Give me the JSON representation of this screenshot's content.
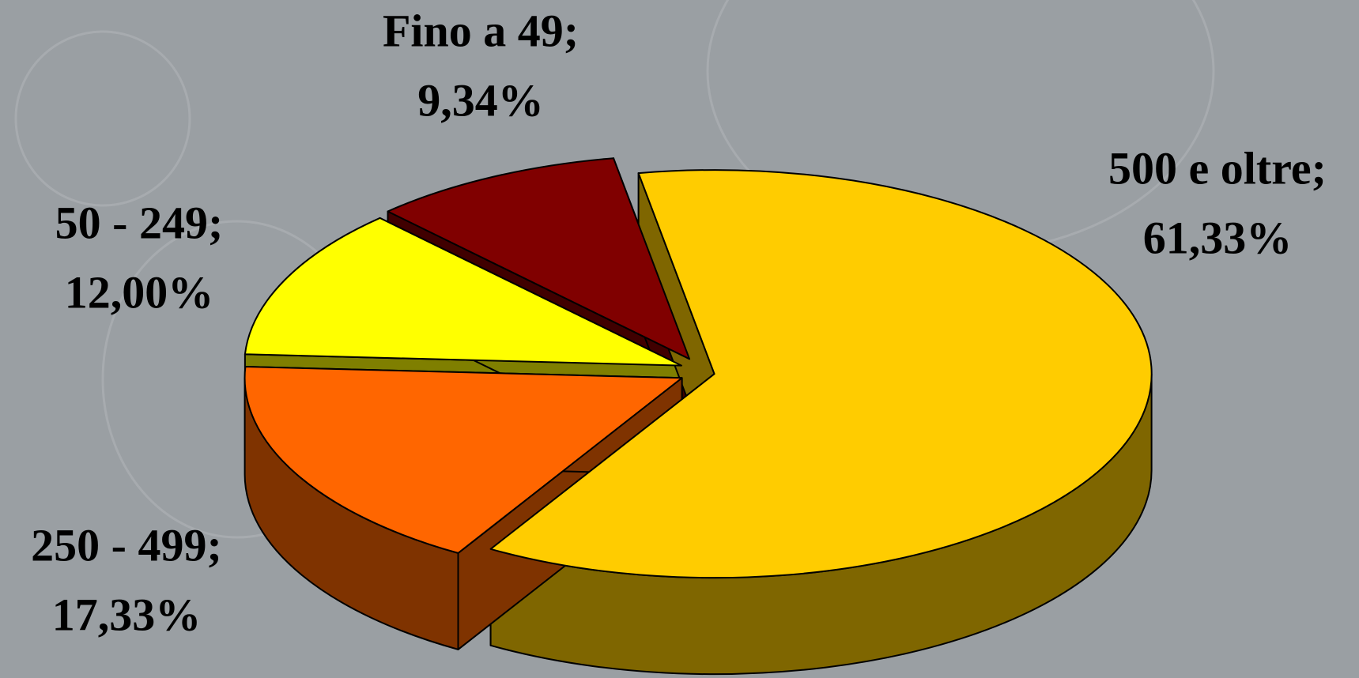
{
  "chart_data": {
    "type": "pie",
    "categories": [
      "500 e oltre;",
      "250 - 499;",
      "50 - 249;",
      "Fino a 49;"
    ],
    "values": [
      61.33,
      17.33,
      12.0,
      9.34
    ],
    "value_labels": [
      "61,33%",
      "17,33%",
      "12,00%",
      "9,34%"
    ],
    "colors": [
      "#ffcc00",
      "#ff6600",
      "#ffff00",
      "#800000"
    ],
    "three_d": true
  }
}
